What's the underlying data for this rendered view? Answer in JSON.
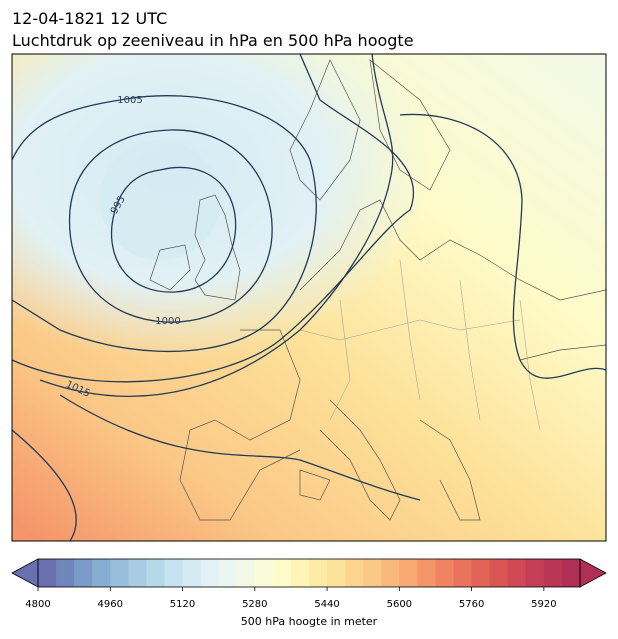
{
  "chart_data": {
    "type": "map",
    "title": "12-04-1821 12 UTC",
    "subtitle": "Luchtdruk op zeeniveau in hPa en 500 hPa hoogte",
    "contour_labels": [
      "1005",
      "995",
      "1000",
      "1015"
    ],
    "colorbar": {
      "label": "500 hPa hoogte in meter",
      "lim": [
        4800,
        6000
      ],
      "ticks": [
        4800,
        4960,
        5120,
        5280,
        5440,
        5600,
        5760,
        5920
      ],
      "colors": [
        "#6a6fb0",
        "#6f86bd",
        "#7a9ac8",
        "#86aed2",
        "#98bedb",
        "#a8cde3",
        "#b6d9ea",
        "#c6e3ef",
        "#d4ebf3",
        "#e1f1f5",
        "#ebf6f2",
        "#f3f9e6",
        "#fafcd8",
        "#fefbc8",
        "#fef4b6",
        "#fdeca6",
        "#fde29a",
        "#fcd68f",
        "#fbc886",
        "#fab97c",
        "#f8a873",
        "#f5966a",
        "#f08462",
        "#ea735d",
        "#e26459",
        "#d95656",
        "#cf4a55",
        "#c43f55",
        "#b93655",
        "#b02f55"
      ]
    }
  }
}
